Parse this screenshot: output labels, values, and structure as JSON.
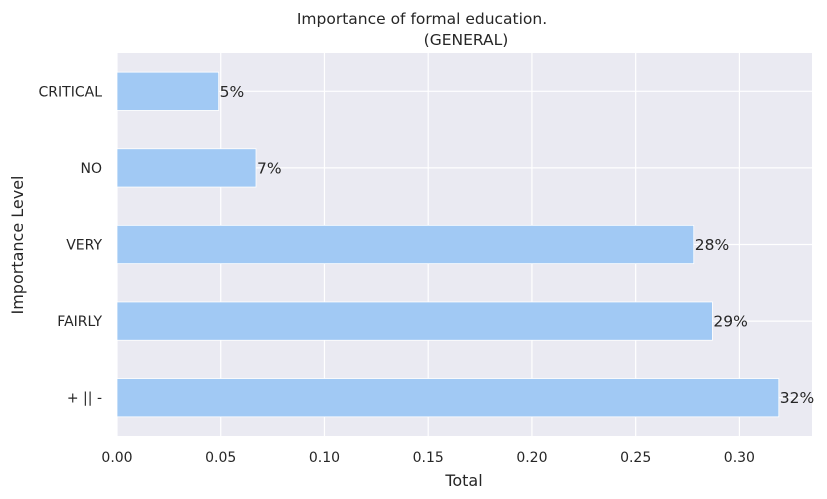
{
  "chart_data": {
    "type": "bar",
    "orientation": "horizontal",
    "title": "Importance of formal education.",
    "subtitle": "(GENERAL)",
    "xlabel": "Total",
    "ylabel": "Importance Level",
    "categories": [
      "CRITICAL",
      "NO",
      "VERY",
      "FAIRLY",
      "+ || -"
    ],
    "values": [
      0.049,
      0.067,
      0.278,
      0.287,
      0.319
    ],
    "data_labels": [
      "5%",
      "7%",
      "28%",
      "29%",
      "32%"
    ],
    "xticks": [
      0.0,
      0.05,
      0.1,
      0.15,
      0.2,
      0.25,
      0.3
    ],
    "xtick_labels": [
      "0.00",
      "0.05",
      "0.10",
      "0.15",
      "0.20",
      "0.25",
      "0.30"
    ],
    "xlim": [
      0,
      0.335
    ],
    "grid": true,
    "bar_color": "#a1c9f4",
    "background_color": "#eaeaf2",
    "grid_color": "#ffffff"
  }
}
